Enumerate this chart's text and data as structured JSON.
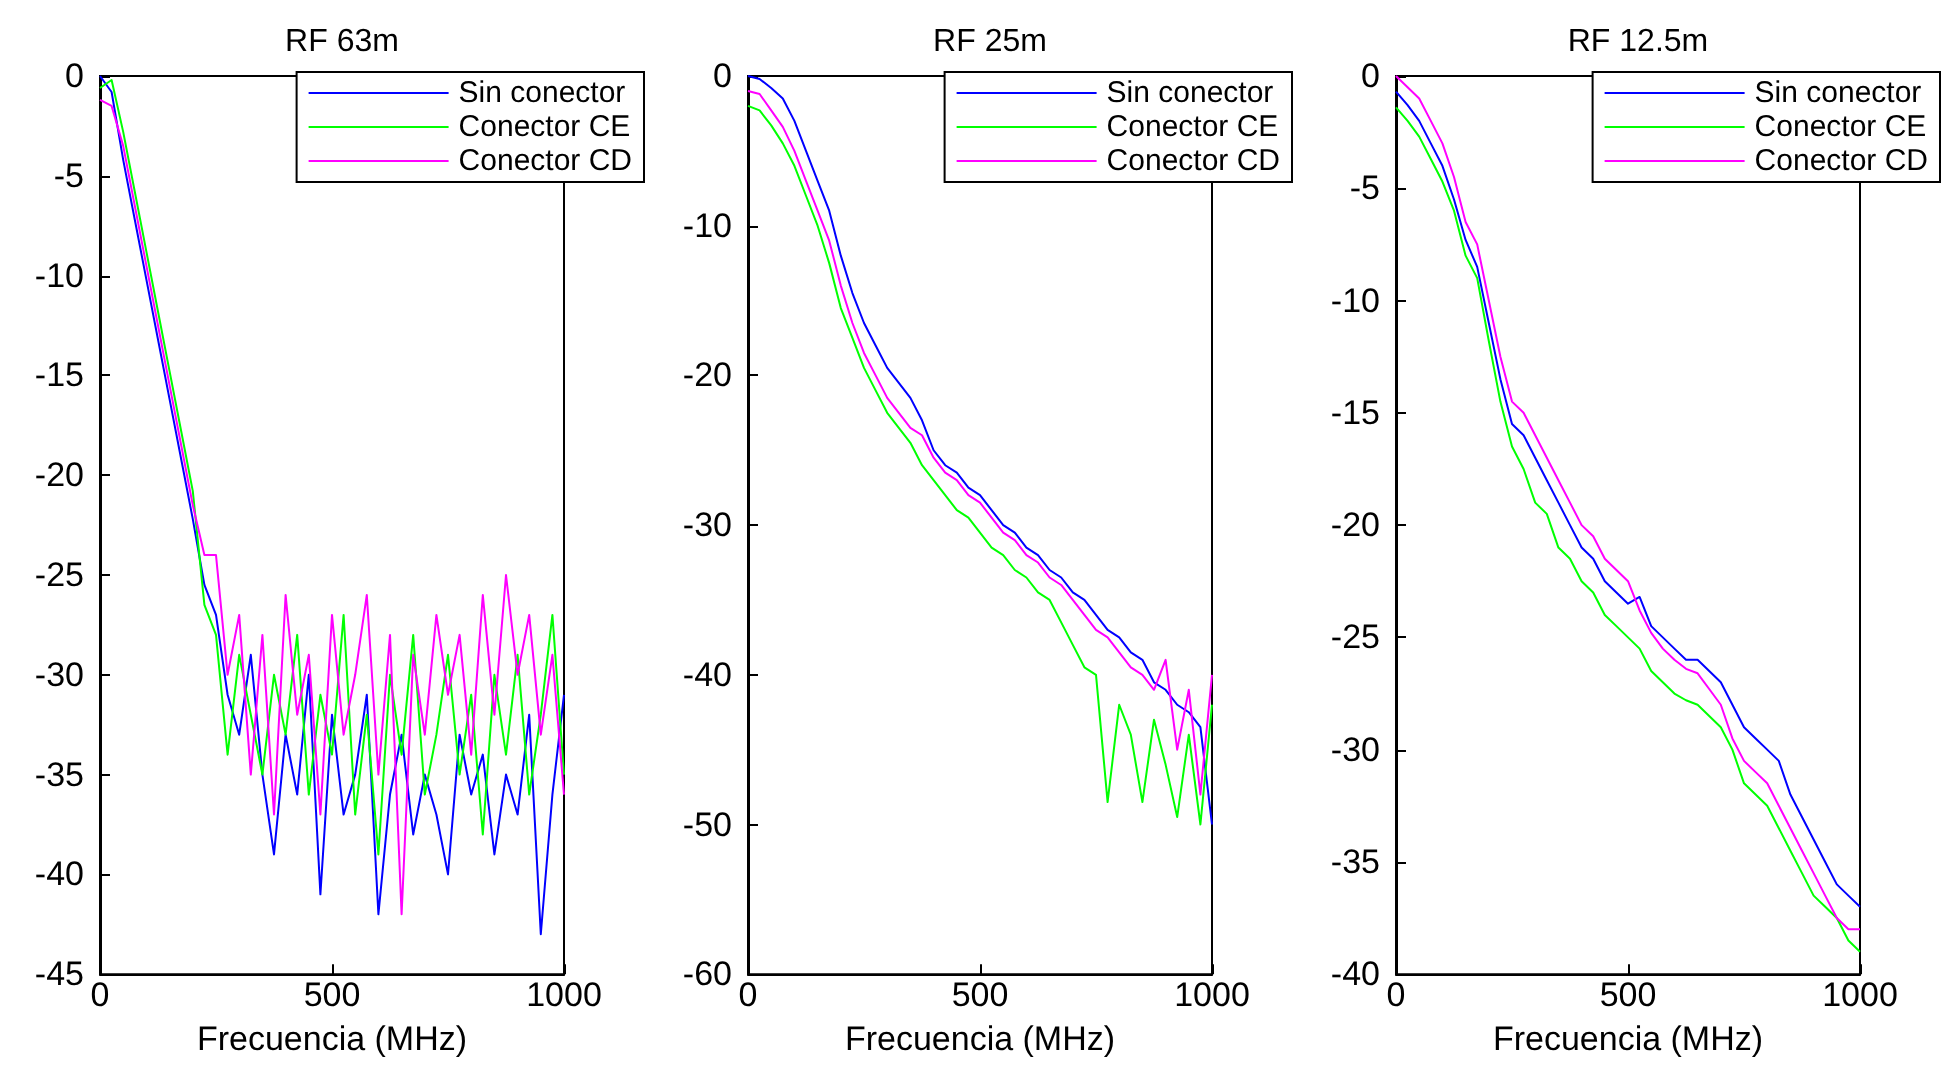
{
  "chart_data": [
    {
      "type": "line",
      "title": "RF 63m",
      "xlabel": "Frecuencia (MHz)",
      "legend": "top right",
      "x": [
        0,
        25,
        50,
        75,
        100,
        125,
        150,
        175,
        200,
        225,
        250,
        275,
        300,
        325,
        350,
        375,
        400,
        425,
        450,
        475,
        500,
        525,
        550,
        575,
        600,
        625,
        650,
        675,
        700,
        725,
        750,
        775,
        800,
        825,
        850,
        875,
        900,
        925,
        950,
        975,
        1000
      ],
      "xlim": [
        0,
        1000
      ],
      "xticks": [
        0,
        500,
        1000
      ],
      "ylim": [
        -45,
        0
      ],
      "yticks": [
        -45,
        -40,
        -35,
        -30,
        -25,
        -20,
        -15,
        -10,
        -5,
        0
      ],
      "series": [
        {
          "name": "Sin conector",
          "color": "#0000ff",
          "values": [
            0,
            -0.8,
            -4.2,
            -7.2,
            -10.2,
            -13.2,
            -16.2,
            -19.2,
            -22.2,
            -25.5,
            -27,
            -31,
            -33,
            -29,
            -35,
            -39,
            -33,
            -36,
            -30,
            -41,
            -32,
            -37,
            -35,
            -31,
            -42,
            -36,
            -33,
            -38,
            -35,
            -37,
            -40,
            -33,
            -36,
            -34,
            -39,
            -35,
            -37,
            -32,
            -43,
            -36,
            -31
          ]
        },
        {
          "name": "Conector CE",
          "color": "#00ff00",
          "values": [
            -0.6,
            -0.2,
            -2.8,
            -5.8,
            -8.8,
            -11.8,
            -14.8,
            -17.8,
            -20.8,
            -26.5,
            -28,
            -34,
            -29,
            -32,
            -35,
            -30,
            -33,
            -28,
            -36,
            -31,
            -34,
            -27,
            -37,
            -32,
            -39,
            -30,
            -34,
            -28,
            -36,
            -33,
            -29,
            -35,
            -31,
            -38,
            -30,
            -34,
            -29,
            -36,
            -32,
            -27,
            -35
          ]
        },
        {
          "name": "Conector CD",
          "color": "#ff00ff",
          "values": [
            -1.2,
            -1.5,
            -3.5,
            -6.5,
            -9.5,
            -12.5,
            -15.5,
            -18.5,
            -21.5,
            -24,
            -24,
            -30,
            -27,
            -35,
            -28,
            -37,
            -26,
            -32,
            -29,
            -37,
            -27,
            -33,
            -30,
            -26,
            -35,
            -28,
            -42,
            -29,
            -33,
            -27,
            -31,
            -28,
            -34,
            -26,
            -32,
            -25,
            -30,
            -27,
            -33,
            -29,
            -36
          ]
        }
      ]
    },
    {
      "type": "line",
      "title": "RF 25m",
      "xlabel": "Frecuencia (MHz)",
      "legend": "top right",
      "x": [
        0,
        25,
        50,
        75,
        100,
        125,
        150,
        175,
        200,
        225,
        250,
        275,
        300,
        325,
        350,
        375,
        400,
        425,
        450,
        475,
        500,
        525,
        550,
        575,
        600,
        625,
        650,
        675,
        700,
        725,
        750,
        775,
        800,
        825,
        850,
        875,
        900,
        925,
        950,
        975,
        1000
      ],
      "xlim": [
        0,
        1000
      ],
      "xticks": [
        0,
        500,
        1000
      ],
      "ylim": [
        -60,
        0
      ],
      "yticks": [
        -60,
        -50,
        -40,
        -30,
        -20,
        -10,
        0
      ],
      "series": [
        {
          "name": "Sin conector",
          "color": "#0000ff",
          "values": [
            0,
            -0.2,
            -0.8,
            -1.5,
            -3,
            -5,
            -7,
            -9,
            -12,
            -14.5,
            -16.5,
            -18,
            -19.5,
            -20.5,
            -21.5,
            -23,
            -25,
            -26,
            -26.5,
            -27.5,
            -28,
            -29,
            -30,
            -30.5,
            -31.5,
            -32,
            -33,
            -33.5,
            -34.5,
            -35,
            -36,
            -37,
            -37.5,
            -38.5,
            -39,
            -40.5,
            -41,
            -42,
            -42.5,
            -43.5,
            -50
          ]
        },
        {
          "name": "Conector CE",
          "color": "#00ff00",
          "values": [
            -2,
            -2.3,
            -3.3,
            -4.5,
            -6,
            -8,
            -10,
            -12.5,
            -15.5,
            -17.5,
            -19.5,
            -21,
            -22.5,
            -23.5,
            -24.5,
            -26,
            -27,
            -28,
            -29,
            -29.5,
            -30.5,
            -31.5,
            -32,
            -33,
            -33.5,
            -34.5,
            -35,
            -36.5,
            -38,
            -39.5,
            -40,
            -48.5,
            -42,
            -44,
            -48.5,
            -43,
            -46,
            -49.5,
            -44,
            -50,
            -42
          ]
        },
        {
          "name": "Conector CD",
          "color": "#ff00ff",
          "values": [
            -1,
            -1.2,
            -2.3,
            -3.4,
            -5,
            -7,
            -9,
            -11,
            -14,
            -16.5,
            -18.5,
            -20,
            -21.5,
            -22.5,
            -23.5,
            -24,
            -25.5,
            -26.5,
            -27,
            -28,
            -28.5,
            -29.5,
            -30.5,
            -31,
            -32,
            -32.5,
            -33.5,
            -34,
            -35,
            -36,
            -37,
            -37.5,
            -38.5,
            -39.5,
            -40,
            -41,
            -39,
            -45,
            -41,
            -48,
            -40
          ]
        }
      ]
    },
    {
      "type": "line",
      "title": "RF 12.5m",
      "xlabel": "Frecuencia (MHz)",
      "legend": "top right",
      "x": [
        0,
        25,
        50,
        75,
        100,
        125,
        150,
        175,
        200,
        225,
        250,
        275,
        300,
        325,
        350,
        375,
        400,
        425,
        450,
        475,
        500,
        525,
        550,
        575,
        600,
        625,
        650,
        675,
        700,
        725,
        750,
        775,
        800,
        825,
        850,
        875,
        900,
        925,
        950,
        975,
        1000
      ],
      "xlim": [
        0,
        1000
      ],
      "xticks": [
        0,
        500,
        1000
      ],
      "ylim": [
        -40,
        0
      ],
      "yticks": [
        -40,
        -35,
        -30,
        -25,
        -20,
        -15,
        -10,
        -5,
        0
      ],
      "series": [
        {
          "name": "Sin conector",
          "color": "#0000ff",
          "values": [
            -0.7,
            -1.3,
            -2,
            -3,
            -4,
            -5.5,
            -7.3,
            -8.5,
            -11,
            -13.5,
            -15.5,
            -16,
            -17,
            -18,
            -19,
            -20,
            -21,
            -21.5,
            -22.5,
            -23,
            -23.5,
            -23.2,
            -24.5,
            -25,
            -25.5,
            -26,
            -26,
            -26.5,
            -27,
            -28,
            -29,
            -29.5,
            -30,
            -30.5,
            -32,
            -33,
            -34,
            -35,
            -36,
            -36.5,
            -37
          ]
        },
        {
          "name": "Conector CE",
          "color": "#00ff00",
          "values": [
            -1.4,
            -2,
            -2.7,
            -3.7,
            -4.7,
            -6,
            -8,
            -9,
            -11.8,
            -14.5,
            -16.5,
            -17.5,
            -19,
            -19.5,
            -21,
            -21.5,
            -22.5,
            -23,
            -24,
            -24.5,
            -25,
            -25.5,
            -26.5,
            -27,
            -27.5,
            -27.8,
            -28,
            -28.5,
            -29,
            -30,
            -31.5,
            -32,
            -32.5,
            -33.5,
            -34.5,
            -35.5,
            -36.5,
            -37,
            -37.5,
            -38.5,
            -39
          ]
        },
        {
          "name": "Conector CD",
          "color": "#ff00ff",
          "values": [
            0,
            -0.5,
            -1,
            -2,
            -3,
            -4.5,
            -6.5,
            -7.5,
            -10,
            -12.5,
            -14.5,
            -15,
            -16,
            -17,
            -18,
            -19,
            -20,
            -20.5,
            -21.5,
            -22,
            -22.5,
            -23.8,
            -24.8,
            -25.5,
            -26,
            -26.4,
            -26.6,
            -27.3,
            -28,
            -29.5,
            -30.5,
            -31,
            -31.5,
            -32.5,
            -33.5,
            -34.5,
            -35.5,
            -36.5,
            -37.5,
            -38,
            -38
          ]
        }
      ]
    }
  ]
}
